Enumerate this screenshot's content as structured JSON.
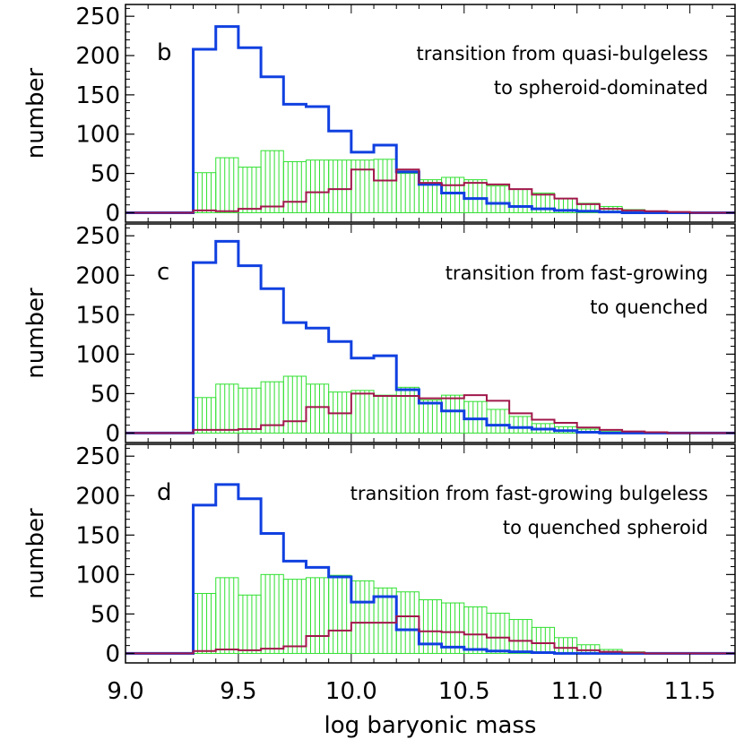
{
  "chart_data": [
    {
      "type": "histogram",
      "panel_label": "b",
      "annotation": [
        "transition from quasi-bulgeless",
        "to spheroid-dominated"
      ],
      "ylabel": "number",
      "xlabel": "",
      "xlim": [
        9.0,
        11.7
      ],
      "ylim": [
        -12,
        265
      ],
      "yticks": [
        0,
        50,
        100,
        150,
        200,
        250
      ],
      "bin_edges": [
        9.0,
        9.1,
        9.2,
        9.3,
        9.4,
        9.5,
        9.6,
        9.7,
        9.8,
        9.9,
        10.0,
        10.1,
        10.2,
        10.3,
        10.4,
        10.5,
        10.6,
        10.7,
        10.8,
        10.9,
        11.0,
        11.1,
        11.2,
        11.3,
        11.4,
        11.5,
        11.6,
        11.7
      ],
      "series": [
        {
          "color": "#1040e0",
          "style": "step",
          "values": [
            0,
            0,
            0,
            208,
            237,
            210,
            173,
            138,
            135,
            104,
            77,
            86,
            52,
            36,
            25,
            18,
            12,
            8,
            5,
            3,
            2,
            1,
            0,
            0,
            0,
            0,
            0
          ]
        },
        {
          "color": "#30e030",
          "style": "hatched",
          "values": [
            0,
            0,
            0,
            51,
            70,
            58,
            79,
            65,
            67,
            67,
            67,
            68,
            50,
            42,
            45,
            42,
            34,
            30,
            25,
            18,
            12,
            8,
            4,
            2,
            1,
            0,
            0
          ]
        },
        {
          "color": "#a0184a",
          "style": "step",
          "values": [
            0,
            0,
            0,
            3,
            2,
            5,
            8,
            14,
            26,
            30,
            55,
            41,
            55,
            38,
            35,
            38,
            36,
            30,
            23,
            18,
            11,
            5,
            3,
            2,
            1,
            0,
            0
          ]
        }
      ]
    },
    {
      "type": "histogram",
      "panel_label": "c",
      "annotation": [
        "transition from fast-growing",
        "to quenched"
      ],
      "ylabel": "number",
      "xlabel": "",
      "xlim": [
        9.0,
        11.7
      ],
      "ylim": [
        -12,
        265
      ],
      "yticks": [
        0,
        50,
        100,
        150,
        200,
        250
      ],
      "bin_edges": [
        9.0,
        9.1,
        9.2,
        9.3,
        9.4,
        9.5,
        9.6,
        9.7,
        9.8,
        9.9,
        10.0,
        10.1,
        10.2,
        10.3,
        10.4,
        10.5,
        10.6,
        10.7,
        10.8,
        10.9,
        11.0,
        11.1,
        11.2,
        11.3,
        11.4,
        11.5,
        11.6,
        11.7
      ],
      "series": [
        {
          "color": "#1040e0",
          "style": "step",
          "values": [
            0,
            0,
            0,
            216,
            243,
            212,
            183,
            140,
            133,
            116,
            95,
            98,
            55,
            38,
            28,
            18,
            10,
            7,
            5,
            3,
            1,
            0,
            0,
            0,
            0,
            0,
            0
          ]
        },
        {
          "color": "#30e030",
          "style": "hatched",
          "values": [
            0,
            0,
            0,
            45,
            62,
            57,
            65,
            72,
            62,
            52,
            54,
            48,
            58,
            42,
            48,
            40,
            30,
            21,
            12,
            8,
            5,
            2,
            1,
            0,
            0,
            0,
            0
          ]
        },
        {
          "color": "#a0184a",
          "style": "step",
          "values": [
            0,
            0,
            0,
            4,
            4,
            5,
            10,
            15,
            33,
            25,
            50,
            47,
            47,
            44,
            44,
            48,
            41,
            25,
            17,
            13,
            7,
            4,
            2,
            1,
            0,
            0,
            0
          ]
        }
      ]
    },
    {
      "type": "histogram",
      "panel_label": "d",
      "annotation": [
        "transition from fast-growing bulgeless",
        "to quenched spheroid"
      ],
      "ylabel": "number",
      "xlabel": "log baryonic mass",
      "xlim": [
        9.0,
        11.7
      ],
      "ylim": [
        -12,
        265
      ],
      "yticks": [
        0,
        50,
        100,
        150,
        200,
        250
      ],
      "xticks": [
        "9.0",
        "9.5",
        "10.0",
        "10.5",
        "11.0",
        "11.5"
      ],
      "bin_edges": [
        9.0,
        9.1,
        9.2,
        9.3,
        9.4,
        9.5,
        9.6,
        9.7,
        9.8,
        9.9,
        10.0,
        10.1,
        10.2,
        10.3,
        10.4,
        10.5,
        10.6,
        10.7,
        10.8,
        10.9,
        11.0,
        11.1,
        11.2,
        11.3,
        11.4,
        11.5,
        11.6,
        11.7
      ],
      "series": [
        {
          "color": "#1040e0",
          "style": "step",
          "values": [
            0,
            0,
            0,
            188,
            214,
            196,
            152,
            117,
            109,
            97,
            65,
            72,
            30,
            12,
            8,
            5,
            3,
            2,
            1,
            0,
            0,
            0,
            0,
            0,
            0,
            0,
            0
          ]
        },
        {
          "color": "#30e030",
          "style": "hatched",
          "values": [
            0,
            0,
            0,
            76,
            96,
            74,
            100,
            94,
            96,
            99,
            92,
            83,
            78,
            68,
            64,
            59,
            51,
            43,
            33,
            20,
            11,
            5,
            2,
            1,
            0,
            0,
            0
          ]
        },
        {
          "color": "#a0184a",
          "style": "step",
          "values": [
            0,
            0,
            0,
            3,
            5,
            4,
            6,
            9,
            22,
            29,
            39,
            39,
            47,
            28,
            27,
            24,
            20,
            16,
            13,
            7,
            4,
            2,
            1,
            0,
            0,
            0,
            0
          ]
        }
      ]
    }
  ]
}
